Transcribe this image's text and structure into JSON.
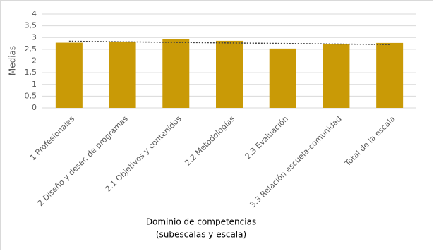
{
  "chart_data": {
    "type": "bar",
    "categories": [
      "1 Profesionales",
      "2 Diseño y desar. de programas",
      "2.1 Objetivos y contenidos",
      "2.2 Metodologías",
      "2.3 Evaluación",
      "3.3 Relación escuela-comunidad",
      "Total de la escala"
    ],
    "values": [
      2.78,
      2.83,
      2.92,
      2.86,
      2.53,
      2.71,
      2.77
    ],
    "color": "#c99a06",
    "y_label": "Medias",
    "x_label": [
      "Dominio de competencias",
      "(subescalas y escala)"
    ],
    "ylim": [
      0,
      4
    ],
    "yticks": [
      0,
      {
        "value": 0.5,
        "label": "0,5"
      },
      1,
      {
        "value": 1.5,
        "label": "1,5"
      },
      2,
      {
        "value": 2.5,
        "label": "2,5"
      },
      3,
      {
        "value": 3.5,
        "label": "3,5"
      },
      4
    ],
    "grid": true,
    "trendline": true
  }
}
